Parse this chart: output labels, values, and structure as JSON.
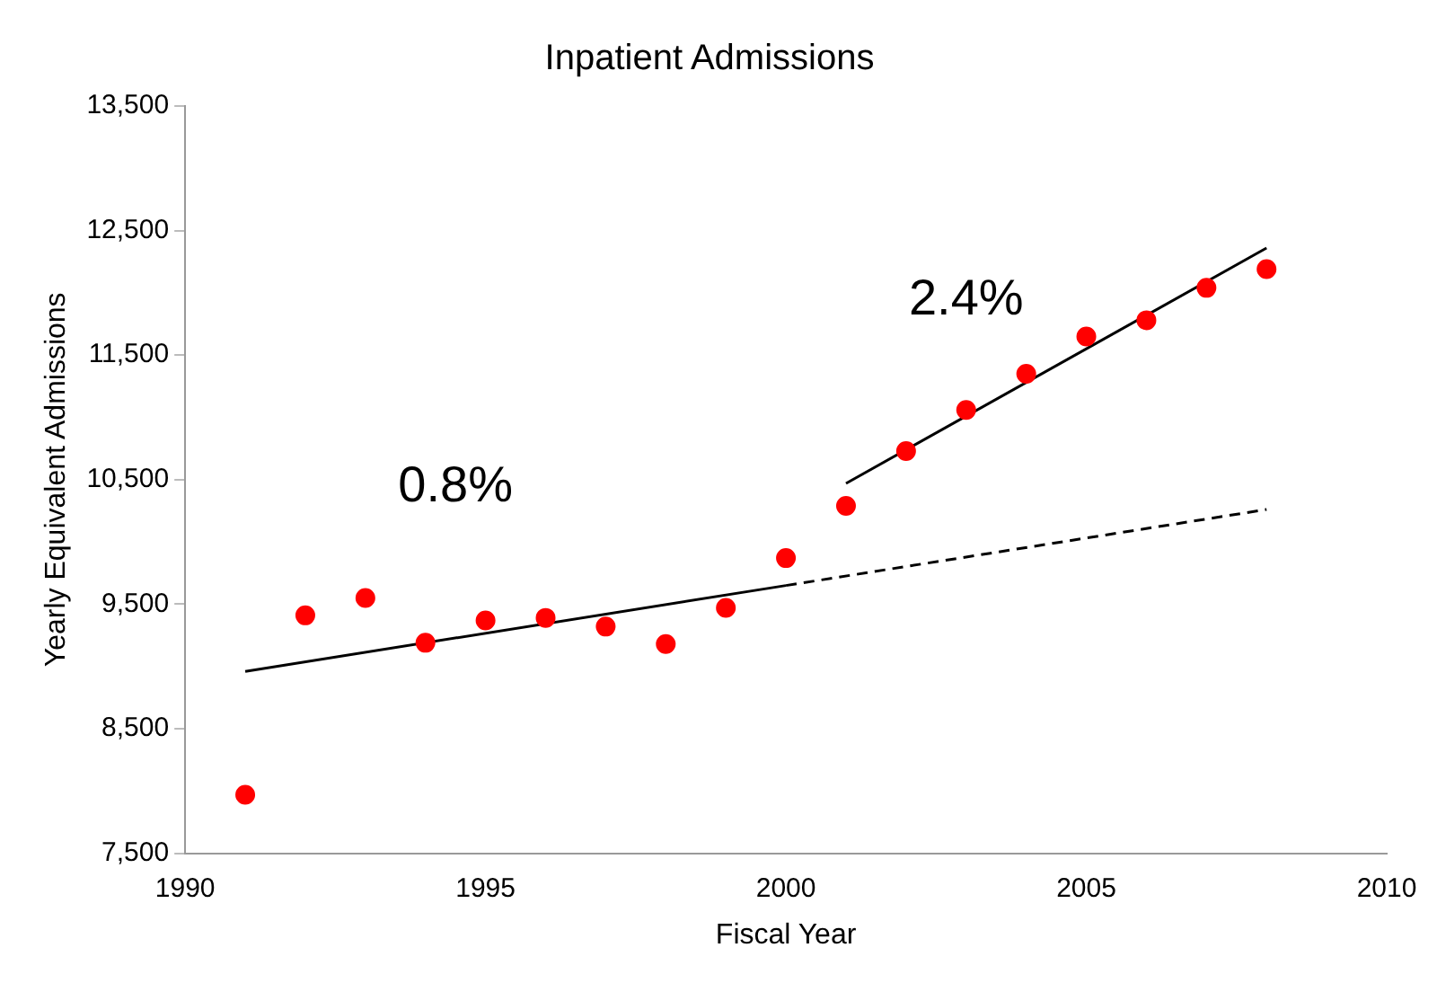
{
  "chart_data": {
    "type": "scatter",
    "title": "Inpatient Admissions",
    "xlabel": "Fiscal Year",
    "ylabel": "Yearly Equivalent Admissions",
    "xlim": [
      1990,
      2010
    ],
    "xticks": [
      1990,
      1995,
      2000,
      2005,
      2010
    ],
    "ylim": [
      7500,
      13500
    ],
    "yticks": [
      {
        "value": 7500,
        "label": "7,500"
      },
      {
        "value": 8500,
        "label": "8,500"
      },
      {
        "value": 9500,
        "label": "9,500"
      },
      {
        "value": 10500,
        "label": "10,500"
      },
      {
        "value": 11500,
        "label": "11,500"
      },
      {
        "value": 12500,
        "label": "12,500"
      },
      {
        "value": 13500,
        "label": "13,500"
      }
    ],
    "grid": false,
    "legend": false,
    "series": [
      {
        "color": "#ff0000",
        "marker": "circle",
        "x": [
          1991,
          1992,
          1993,
          1994,
          1995,
          1996,
          1997,
          1998,
          1999,
          2000,
          2001,
          2002,
          2003,
          2004,
          2005,
          2006,
          2007,
          2008
        ],
        "values": [
          7970,
          9410,
          9550,
          9190,
          9370,
          9390,
          9320,
          9180,
          9470,
          9870,
          10290,
          10730,
          11060,
          11350,
          11650,
          11780,
          12040,
          12190
        ]
      },
      {
        "type": "line",
        "color": "#000000",
        "marker": "none",
        "line_style": "solid",
        "x": [
          1991,
          2000
        ],
        "values": [
          8960,
          9650
        ]
      },
      {
        "type": "line",
        "color": "#000000",
        "marker": "none",
        "line_style": "dashed",
        "x": [
          2000,
          2008
        ],
        "values": [
          9650,
          10260
        ]
      },
      {
        "type": "line",
        "color": "#000000",
        "marker": "none",
        "line_style": "solid",
        "x": [
          2001,
          2008
        ],
        "values": [
          10470,
          12360
        ]
      }
    ],
    "annotations": [
      "0.8%",
      "2.4%"
    ]
  }
}
